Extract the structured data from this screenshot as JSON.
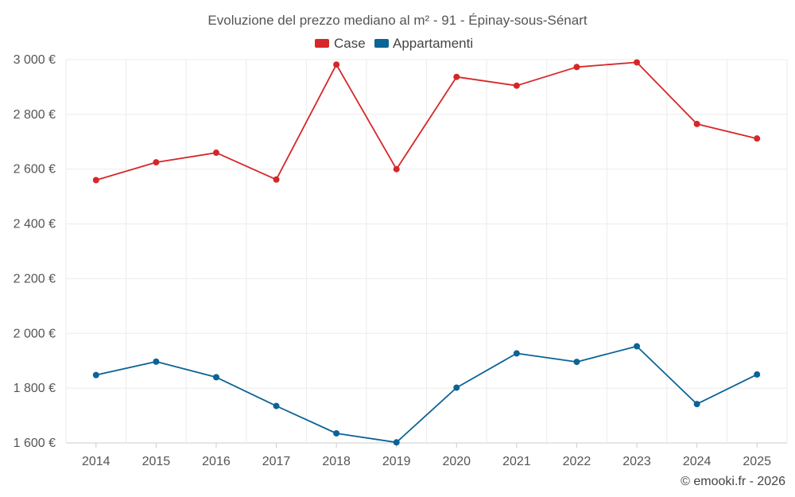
{
  "chart_data": {
    "type": "line",
    "title": "Evoluzione del prezzo mediano al m² - 91 - Épinay-sous-Sénart",
    "categories": [
      "2014",
      "2015",
      "2016",
      "2017",
      "2018",
      "2019",
      "2020",
      "2021",
      "2022",
      "2023",
      "2024",
      "2025"
    ],
    "series": [
      {
        "name": "Case",
        "color": "#d62728",
        "values": [
          2560,
          2625,
          2660,
          2562,
          2982,
          2600,
          2937,
          2905,
          2973,
          2990,
          2765,
          2712
        ]
      },
      {
        "name": "Appartamenti",
        "color": "#0b6396",
        "values": [
          1848,
          1897,
          1840,
          1735,
          1635,
          1602,
          1802,
          1927,
          1896,
          1953,
          1742,
          1850
        ]
      }
    ],
    "ylim": [
      1600,
      3000
    ],
    "yticks": [
      1600,
      1800,
      2000,
      2200,
      2400,
      2600,
      2800,
      3000
    ],
    "ytick_labels": [
      "1 600 €",
      "1 800 €",
      "2 000 €",
      "2 200 €",
      "2 400 €",
      "2 600 €",
      "2 800 €",
      "3 000 €"
    ],
    "grid": true,
    "legend_position": "top-center",
    "credit": "© emooki.fr - 2026"
  }
}
